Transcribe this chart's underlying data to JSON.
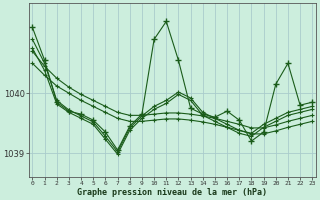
{
  "title": "Graphe pression niveau de la mer (hPa)",
  "bg_color": "#cceedd",
  "grid_color": "#aacccc",
  "line_color": "#1a5c1a",
  "x_labels": [
    "0",
    "1",
    "2",
    "3",
    "4",
    "5",
    "6",
    "7",
    "8",
    "9",
    "10",
    "11",
    "12",
    "13",
    "14",
    "15",
    "16",
    "17",
    "18",
    "19",
    "20",
    "21",
    "22",
    "23"
  ],
  "yticks": [
    1039,
    1040
  ],
  "ylim": [
    1038.6,
    1041.5
  ],
  "xlim": [
    -0.3,
    23.3
  ],
  "series_main": [
    1041.1,
    1040.55,
    1039.85,
    1039.7,
    1039.65,
    1039.55,
    1039.35,
    1039.05,
    1039.45,
    1039.65,
    1040.9,
    1041.2,
    1040.55,
    1039.75,
    1039.65,
    1039.6,
    1039.7,
    1039.55,
    1039.2,
    1039.35,
    1040.15,
    1040.5,
    1039.8,
    1039.85
  ],
  "series_smooth1": [
    1040.7,
    1040.45,
    1040.25,
    1040.1,
    1039.98,
    1039.88,
    1039.78,
    1039.68,
    1039.63,
    1039.63,
    1039.65,
    1039.67,
    1039.67,
    1039.65,
    1039.62,
    1039.58,
    1039.53,
    1039.48,
    1039.42,
    1039.42,
    1039.47,
    1039.53,
    1039.58,
    1039.63
  ],
  "series_smooth2": [
    1040.5,
    1040.3,
    1040.12,
    1040.0,
    1039.88,
    1039.78,
    1039.68,
    1039.58,
    1039.53,
    1039.53,
    1039.55,
    1039.57,
    1039.57,
    1039.55,
    1039.52,
    1039.48,
    1039.43,
    1039.38,
    1039.32,
    1039.32,
    1039.37,
    1039.43,
    1039.48,
    1039.53
  ],
  "series_mid1": [
    1040.9,
    1040.5,
    1039.88,
    1039.72,
    1039.62,
    1039.52,
    1039.28,
    1039.02,
    1039.42,
    1039.62,
    1039.78,
    1039.88,
    1040.02,
    1039.92,
    1039.68,
    1039.58,
    1039.48,
    1039.38,
    1039.33,
    1039.48,
    1039.58,
    1039.68,
    1039.73,
    1039.78
  ],
  "series_mid2": [
    1040.75,
    1040.38,
    1039.82,
    1039.68,
    1039.58,
    1039.48,
    1039.23,
    1038.98,
    1039.38,
    1039.58,
    1039.73,
    1039.83,
    1039.98,
    1039.88,
    1039.63,
    1039.53,
    1039.43,
    1039.33,
    1039.28,
    1039.43,
    1039.53,
    1039.63,
    1039.68,
    1039.73
  ]
}
